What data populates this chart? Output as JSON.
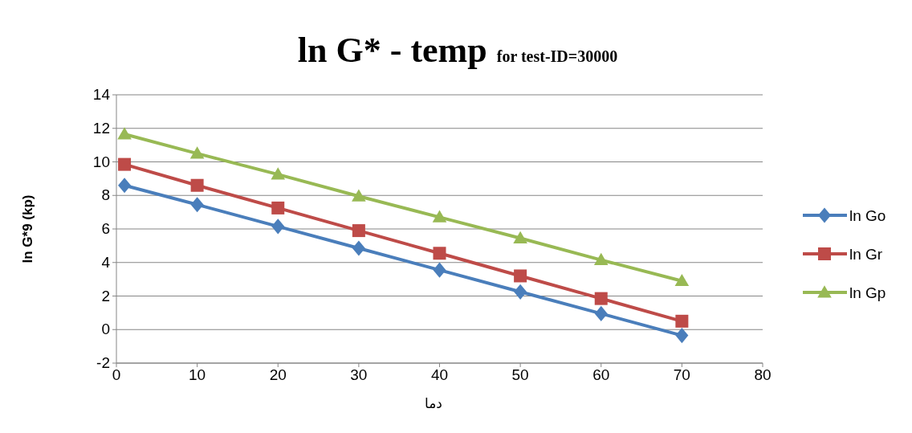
{
  "chart_data": {
    "type": "line",
    "title": "ln G* - temp",
    "subtitle": "for test-ID=30000",
    "xlabel": "دما",
    "ylabel": "ln G*9 (kp)",
    "x": [
      1,
      10,
      20,
      30,
      40,
      50,
      60,
      70
    ],
    "series": [
      {
        "name": "ln Go",
        "color": "#4a7ebb",
        "marker": "diamond",
        "values": [
          8.6,
          7.45,
          6.15,
          4.85,
          3.55,
          2.25,
          0.95,
          -0.35
        ]
      },
      {
        "name": "ln Gr",
        "color": "#be4b48",
        "marker": "square",
        "values": [
          9.85,
          8.6,
          7.25,
          5.9,
          4.55,
          3.2,
          1.85,
          0.5
        ]
      },
      {
        "name": "ln Gp",
        "color": "#98b954",
        "marker": "triangle",
        "values": [
          11.65,
          10.5,
          9.25,
          7.95,
          6.7,
          5.45,
          4.15,
          2.9
        ]
      }
    ],
    "xlim": [
      0,
      80
    ],
    "xticks": [
      0,
      10,
      20,
      30,
      40,
      50,
      60,
      70,
      80
    ],
    "ylim": [
      -2,
      14
    ],
    "yticks": [
      -2,
      0,
      2,
      4,
      6,
      8,
      10,
      12,
      14
    ],
    "grid": "y",
    "legend": "right"
  }
}
